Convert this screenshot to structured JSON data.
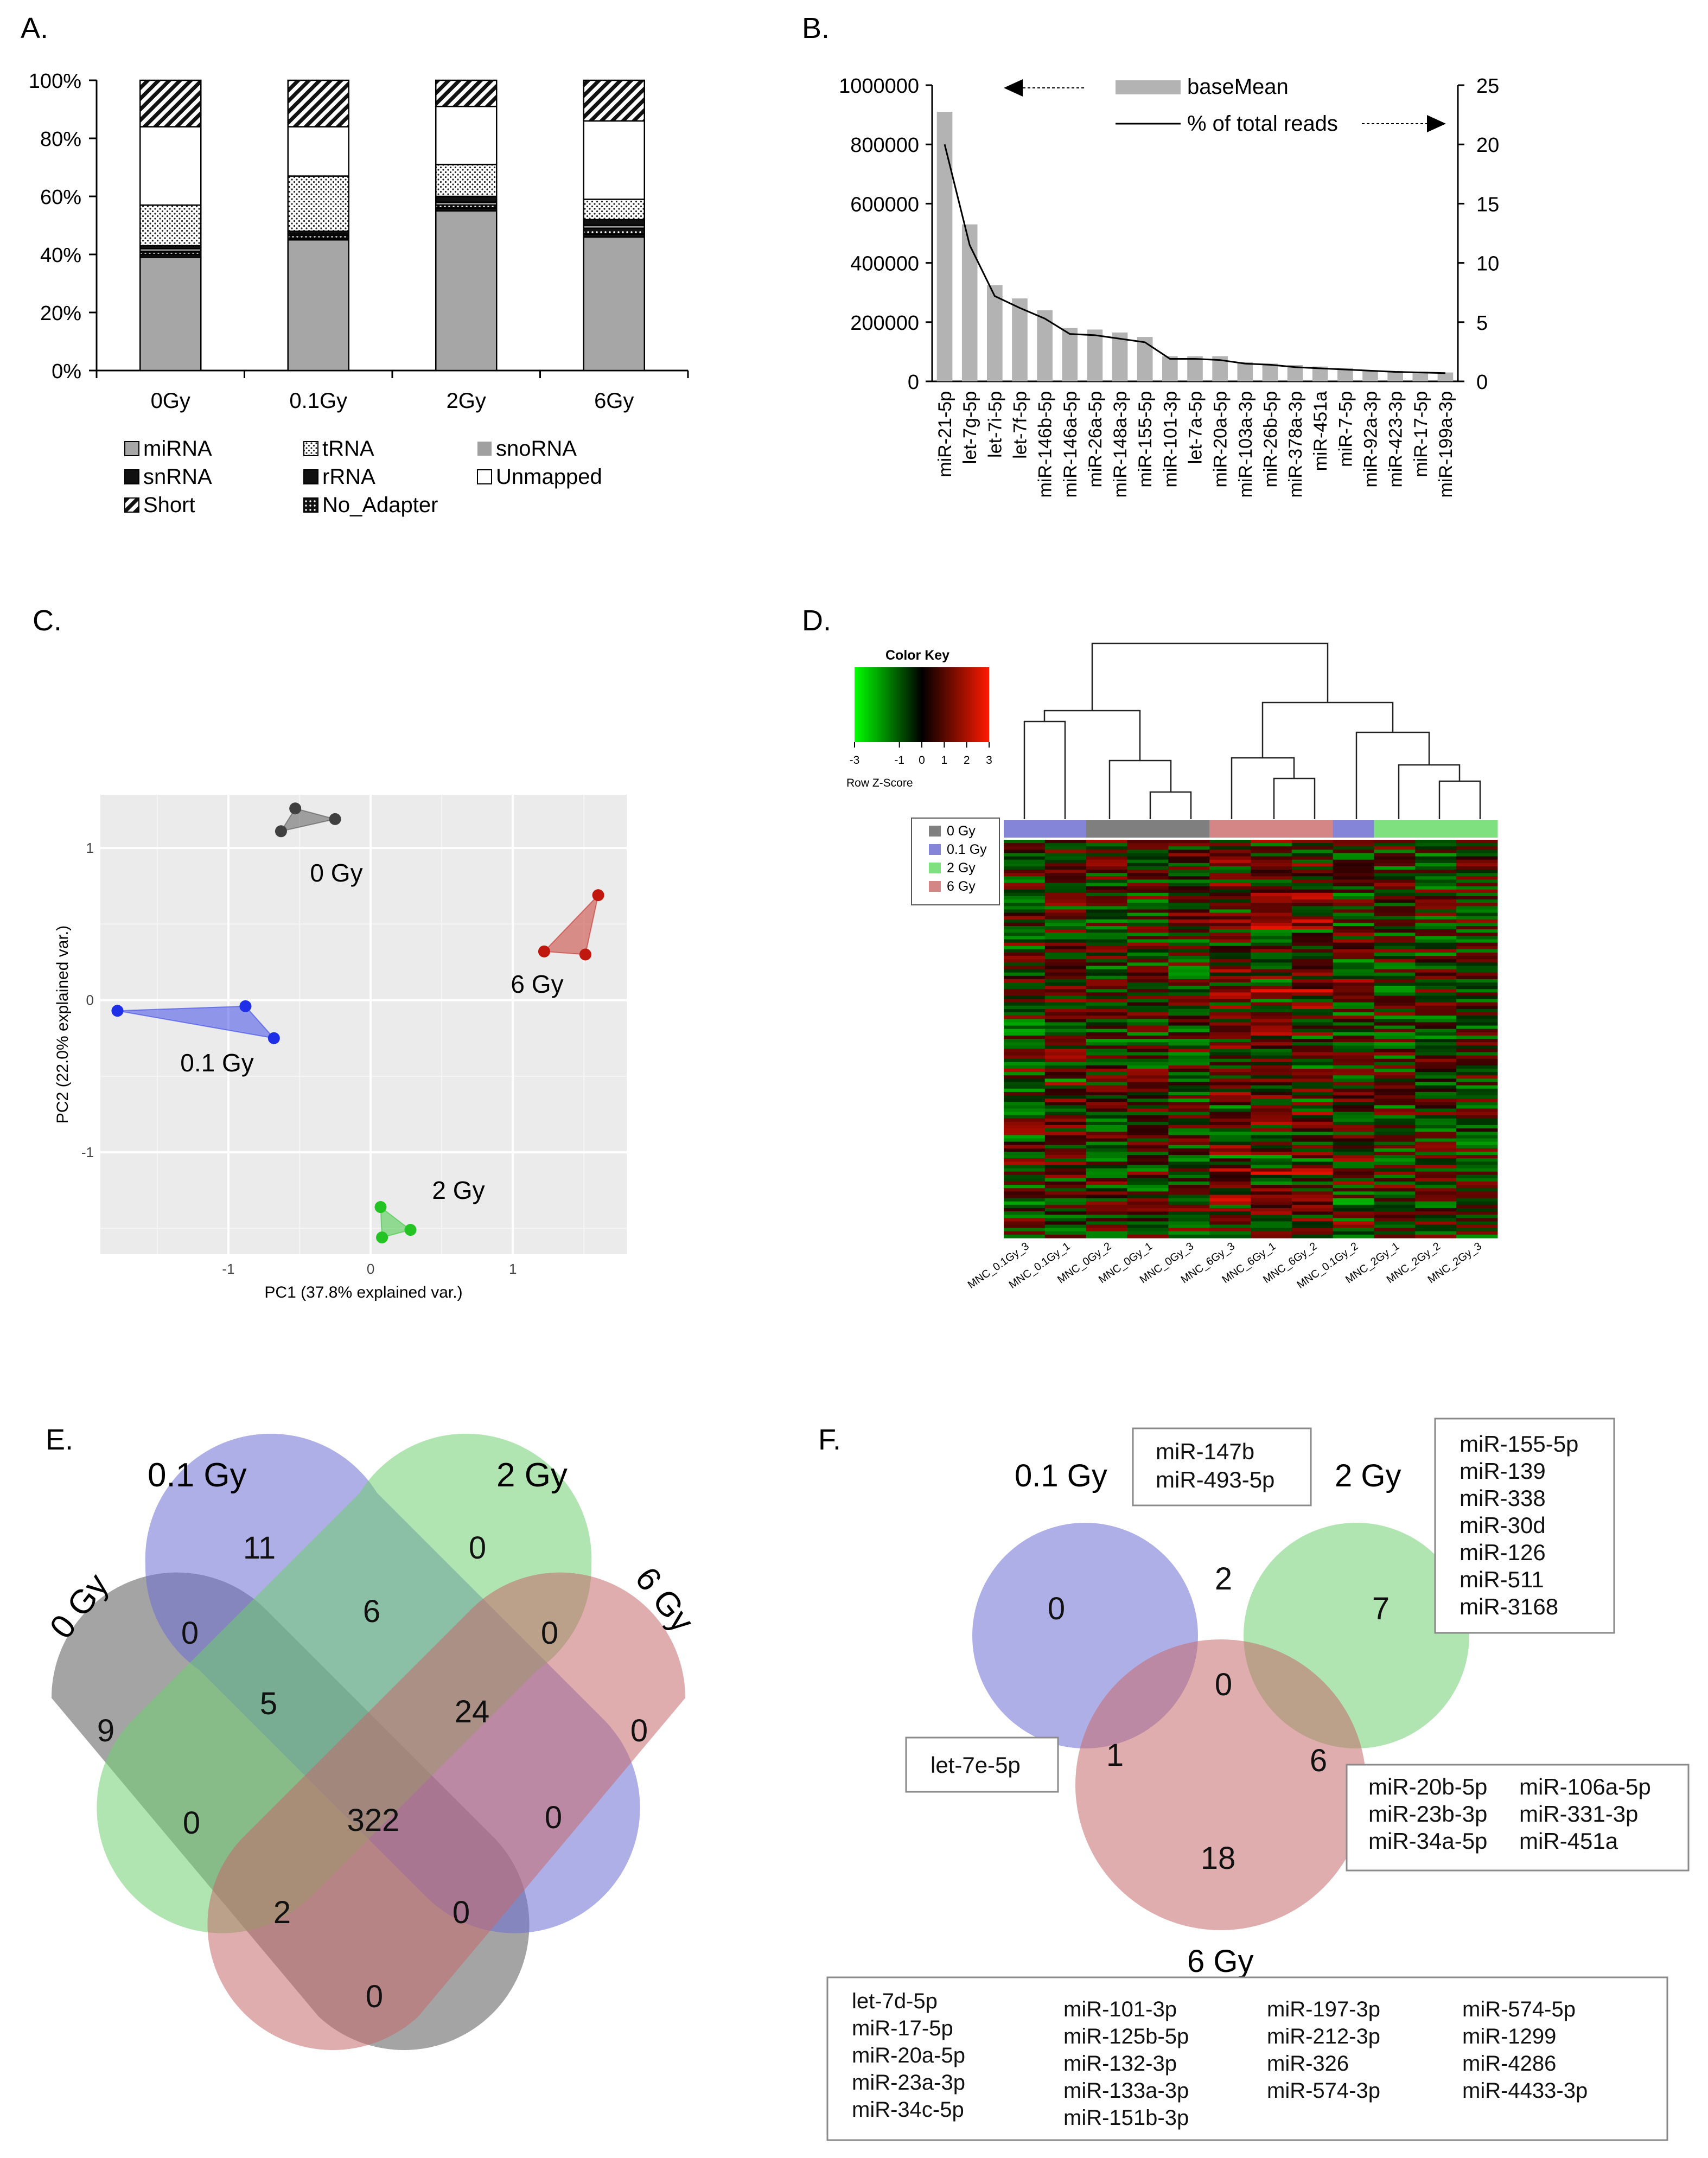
{
  "colors": {
    "miRNA": "#a6a6a6",
    "bar_gray": "#b3b3b3",
    "pca_bg": "#ebebeb",
    "gy0": "#404040",
    "gy01": "#1f2fe8",
    "gy2": "#22c322",
    "gy6": "#c0180f",
    "hm_0": "#7f7f7f",
    "hm_01": "#8484d8",
    "hm_2": "#7fe07f",
    "hm_6": "#d48585",
    "venn_gray": "#5a5a5a",
    "venn_blue": "#6e6ed6",
    "venn_green": "#6fce6f",
    "venn_red": "#c46a6a"
  },
  "chart_data": [
    {
      "panel": "A.",
      "type": "bar",
      "stacked": true,
      "categories": [
        "0Gy",
        "0.1Gy",
        "2Gy",
        "6Gy"
      ],
      "ylim": [
        0,
        100
      ],
      "yticks": [
        "0%",
        "20%",
        "40%",
        "60%",
        "80%",
        "100%"
      ],
      "series": [
        {
          "name": "miRNA",
          "pattern": "solid-gray",
          "values": [
            39,
            45,
            55,
            46
          ]
        },
        {
          "name": "snRNA",
          "pattern": "black",
          "values": [
            1,
            0.5,
            1,
            1
          ]
        },
        {
          "name": "No_Adapter",
          "pattern": "black-dots",
          "values": [
            1,
            1,
            1,
            2
          ]
        },
        {
          "name": "snoRNA",
          "pattern": "gray-light",
          "values": [
            1,
            0.5,
            1,
            1
          ]
        },
        {
          "name": "rRNA",
          "pattern": "black",
          "values": [
            1,
            1,
            2,
            2
          ]
        },
        {
          "name": "tRNA",
          "pattern": "dots",
          "values": [
            14,
            19,
            11,
            7
          ]
        },
        {
          "name": "Unmapped",
          "pattern": "white",
          "values": [
            27,
            17,
            20,
            27
          ]
        },
        {
          "name": "Short",
          "pattern": "hatch",
          "values": [
            16,
            16,
            9,
            14
          ]
        }
      ],
      "legend": [
        [
          "miRNA",
          "tRNA",
          "snoRNA"
        ],
        [
          "snRNA",
          "rRNA",
          "Unmapped"
        ],
        [
          "Short",
          "No_Adapter"
        ]
      ]
    },
    {
      "panel": "B.",
      "type": "bar",
      "categories": [
        "miR-21-5p",
        "let-7g-5p",
        "let-7i-5p",
        "let-7f-5p",
        "miR-146b-5p",
        "miR-146a-5p",
        "miR-26a-5p",
        "miR-148a-3p",
        "miR-155-5p",
        "miR-101-3p",
        "let-7a-5p",
        "miR-20a-5p",
        "miR-103a-3p",
        "miR-26b-5p",
        "miR-378a-3p",
        "miR-451a",
        "miR-7-5p",
        "miR-92a-3p",
        "miR-423-3p",
        "miR-17-5p",
        "miR-199a-3p"
      ],
      "values": [
        910000,
        530000,
        325000,
        280000,
        240000,
        180000,
        175000,
        165000,
        150000,
        85000,
        85000,
        85000,
        65000,
        60000,
        55000,
        50000,
        45000,
        38000,
        35000,
        33000,
        30000
      ],
      "line": {
        "name": "% of total reads",
        "values": [
          20,
          11.5,
          7.2,
          6.2,
          5.3,
          4,
          3.9,
          3.6,
          3.3,
          1.9,
          1.9,
          1.8,
          1.5,
          1.4,
          1.2,
          1.1,
          1,
          0.9,
          0.8,
          0.75,
          0.7
        ]
      },
      "ylim_left": [
        0,
        1000000
      ],
      "yticks_left": [
        "0",
        "200000",
        "400000",
        "600000",
        "800000",
        "1000000"
      ],
      "ylim_right": [
        0,
        25
      ],
      "yticks_right": [
        "0",
        "5",
        "10",
        "15",
        "20",
        "25"
      ],
      "legend_bar": "baseMean",
      "legend_line": "% of total reads"
    },
    {
      "panel": "C.",
      "type": "scatter",
      "xlabel": "PC1 (37.8% explained var.)",
      "ylabel": "PC2 (22.0% explained var.)",
      "xlim": [
        -1.9,
        1.8
      ],
      "ylim": [
        -1.67,
        1.35
      ],
      "xticks": [
        "-1",
        "0",
        "1"
      ],
      "yticks": [
        "-1",
        "0",
        "1"
      ],
      "groups": [
        {
          "name": "0 Gy",
          "color_key": "gy0",
          "points": [
            [
              -0.53,
              1.26
            ],
            [
              -0.63,
              1.11
            ],
            [
              -0.25,
              1.19
            ]
          ]
        },
        {
          "name": "0.1 Gy",
          "color_key": "gy01",
          "points": [
            [
              -1.78,
              -0.07
            ],
            [
              -0.88,
              -0.04
            ],
            [
              -0.68,
              -0.25
            ]
          ]
        },
        {
          "name": "6 Gy",
          "color_key": "gy6",
          "points": [
            [
              1.6,
              0.69
            ],
            [
              1.22,
              0.32
            ],
            [
              1.51,
              0.3
            ]
          ]
        },
        {
          "name": "2 Gy",
          "color_key": "gy2",
          "points": [
            [
              0.07,
              -1.36
            ],
            [
              0.08,
              -1.56
            ],
            [
              0.28,
              -1.51
            ]
          ]
        }
      ]
    },
    {
      "panel": "D.",
      "type": "heatmap",
      "color_key_title": "Color Key",
      "color_key_label": "Row Z-Score",
      "color_key_ticks": [
        "-3",
        "-1",
        "0",
        "1",
        "2",
        "3"
      ],
      "legend": [
        {
          "label": "0 Gy",
          "color_key": "hm_0"
        },
        {
          "label": "0.1 Gy",
          "color_key": "hm_01"
        },
        {
          "label": "2 Gy",
          "color_key": "hm_2"
        },
        {
          "label": "6 Gy",
          "color_key": "hm_6"
        }
      ],
      "columns": [
        "MNC_0.1Gy_3",
        "MNC_0.1Gy_1",
        "MNC_0Gy_2",
        "MNC_0Gy_1",
        "MNC_0Gy_3",
        "MNC_6Gy_3",
        "MNC_6Gy_1",
        "MNC_6Gy_2",
        "MNC_0.1Gy_2",
        "MNC_2Gy_1",
        "MNC_2Gy_2",
        "MNC_2Gy_3"
      ],
      "column_groups": [
        "hm_01",
        "hm_01",
        "hm_0",
        "hm_0",
        "hm_0",
        "hm_6",
        "hm_6",
        "hm_6",
        "hm_01",
        "hm_2",
        "hm_2",
        "hm_2"
      ]
    }
  ],
  "labels": {
    "A": "A.",
    "B": "B.",
    "C": "C.",
    "D": "D.",
    "E": "E.",
    "F": "F."
  },
  "venn_e": {
    "titles": {
      "gy0": "0 Gy",
      "gy01": "0.1 Gy",
      "gy2": "2 Gy",
      "gy6": "6 Gy"
    },
    "counts": {
      "only01": "11",
      "only2": "0",
      "only0": "9",
      "only6": "0",
      "c0_01": "0",
      "c01_2": "6",
      "c2_6": "0",
      "c0_01_2": "5",
      "c01_2_6": "24",
      "c0_2": "0",
      "c_all": "322",
      "c01_6": "0",
      "c0_2_6": "2",
      "c0_01_6": "0",
      "c0_6": "0"
    }
  },
  "venn_f": {
    "titles": {
      "gy01": "0.1 Gy",
      "gy2": "2 Gy",
      "gy6": "6 Gy"
    },
    "counts": {
      "only01": "0",
      "c01_2": "2",
      "only2": "7",
      "c_all": "0",
      "c01_6": "1",
      "c2_6": "6",
      "only6": "18"
    },
    "box_01_2": [
      "miR-147b",
      "miR-493-5p"
    ],
    "box_2": [
      "miR-155-5p",
      "miR-139",
      "miR-338",
      "miR-30d",
      "miR-126",
      "miR-511",
      "miR-3168"
    ],
    "box_01_6": [
      "let-7e-5p"
    ],
    "box_2_6": [
      "miR-20b-5p",
      "miR-106a-5p",
      "miR-23b-3p",
      "miR-331-3p",
      "miR-34a-5p",
      "miR-451a"
    ],
    "box_6": [
      [
        "let-7d-5p",
        "miR-17-5p",
        "miR-20a-5p",
        "miR-23a-3p",
        "miR-34c-5p"
      ],
      [
        "miR-101-3p",
        "miR-125b-5p",
        "miR-132-3p",
        "miR-133a-3p",
        "miR-151b-3p"
      ],
      [
        "miR-197-3p",
        "miR-212-3p",
        "miR-326",
        "miR-574-3p"
      ],
      [
        "miR-574-5p",
        "miR-1299",
        "miR-4286",
        "miR-4433-3p"
      ]
    ]
  }
}
